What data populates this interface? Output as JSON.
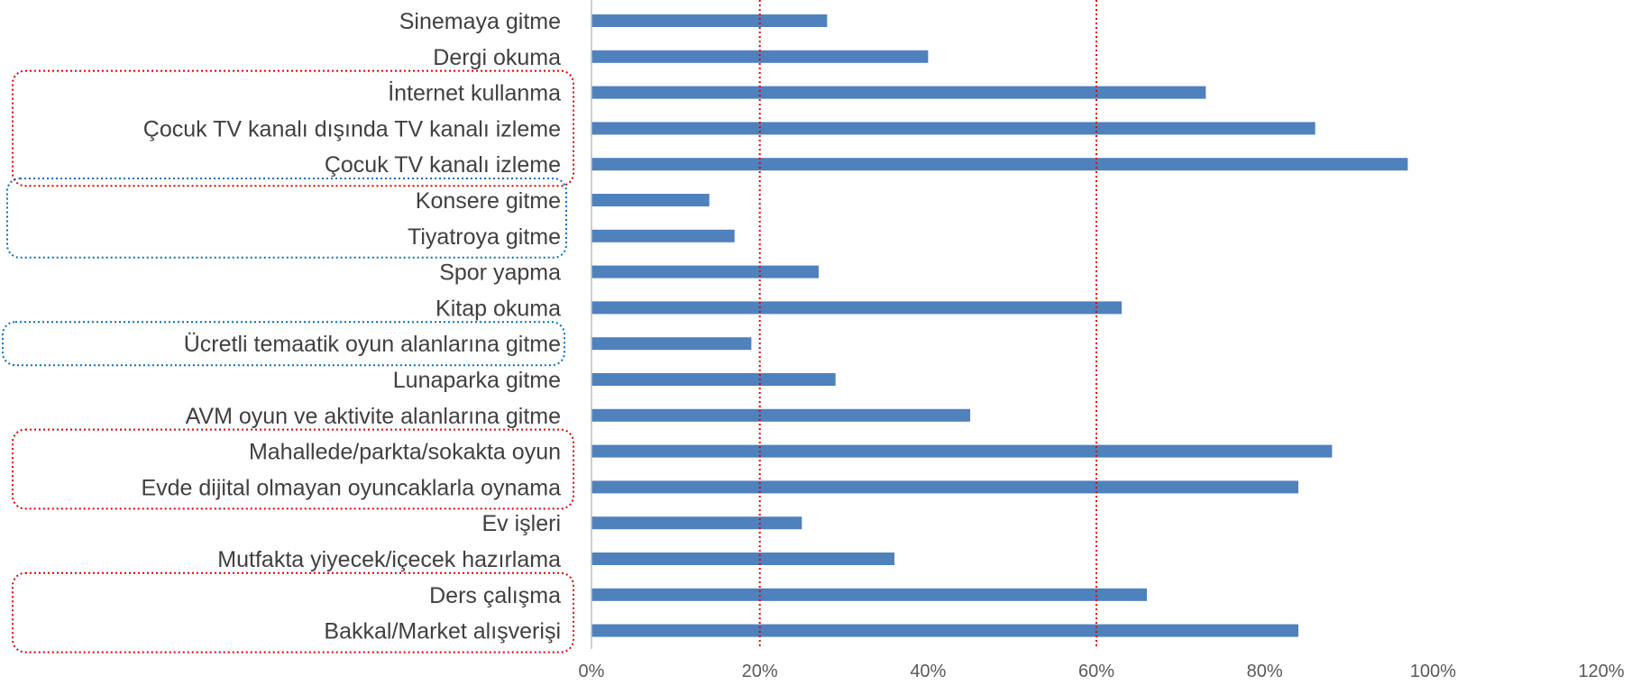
{
  "chart_data": {
    "type": "bar",
    "orientation": "horizontal",
    "categories": [
      "Sinemaya gitme",
      "Dergi okuma",
      "İnternet kullanma",
      "Çocuk TV kanalı dışında TV kanalı izleme",
      "Çocuk TV kanalı izleme",
      "Konsere gitme",
      "Tiyatroya gitme",
      "Spor yapma",
      "Kitap okuma",
      "Ücretli temaatik oyun alanlarına gitme",
      "Lunaparka gitme",
      "AVM oyun ve aktivite alanlarına gitme",
      "Mahallede/parkta/sokakta oyun",
      "Evde dijital olmayan oyuncaklarla oynama",
      "Ev işleri",
      "Mutfakta yiyecek/içecek hazırlama",
      "Ders çalışma",
      "Bakkal/Market alışverişi"
    ],
    "values": [
      0.28,
      0.4,
      0.73,
      0.86,
      0.97,
      0.14,
      0.17,
      0.27,
      0.63,
      0.19,
      0.29,
      0.45,
      0.88,
      0.84,
      0.25,
      0.36,
      0.66,
      0.84
    ],
    "xlim": [
      0,
      1.2
    ],
    "xticks": [
      "0%",
      "20%",
      "40%",
      "60%",
      "80%",
      "100%",
      "120%"
    ],
    "bar_color": "#4F81BD",
    "reference_lines": [
      {
        "value": 0.2,
        "color": "#E00000",
        "style": "dotted"
      },
      {
        "value": 0.6,
        "color": "#E00000",
        "style": "dotted"
      }
    ],
    "highlight_groups": [
      {
        "from_index": 2,
        "to_index": 4,
        "color": "#E00000",
        "style": "dotted"
      },
      {
        "from_index": 5,
        "to_index": 6,
        "color": "#0070C0",
        "style": "dotted"
      },
      {
        "from_index": 9,
        "to_index": 9,
        "color": "#0070C0",
        "style": "dotted"
      },
      {
        "from_index": 12,
        "to_index": 13,
        "color": "#E00000",
        "style": "dotted"
      },
      {
        "from_index": 16,
        "to_index": 17,
        "color": "#E00000",
        "style": "dotted"
      }
    ],
    "axis_color": "#BFBFBF",
    "title": "",
    "xlabel": "",
    "ylabel": "",
    "grid": false,
    "legend": "none"
  }
}
